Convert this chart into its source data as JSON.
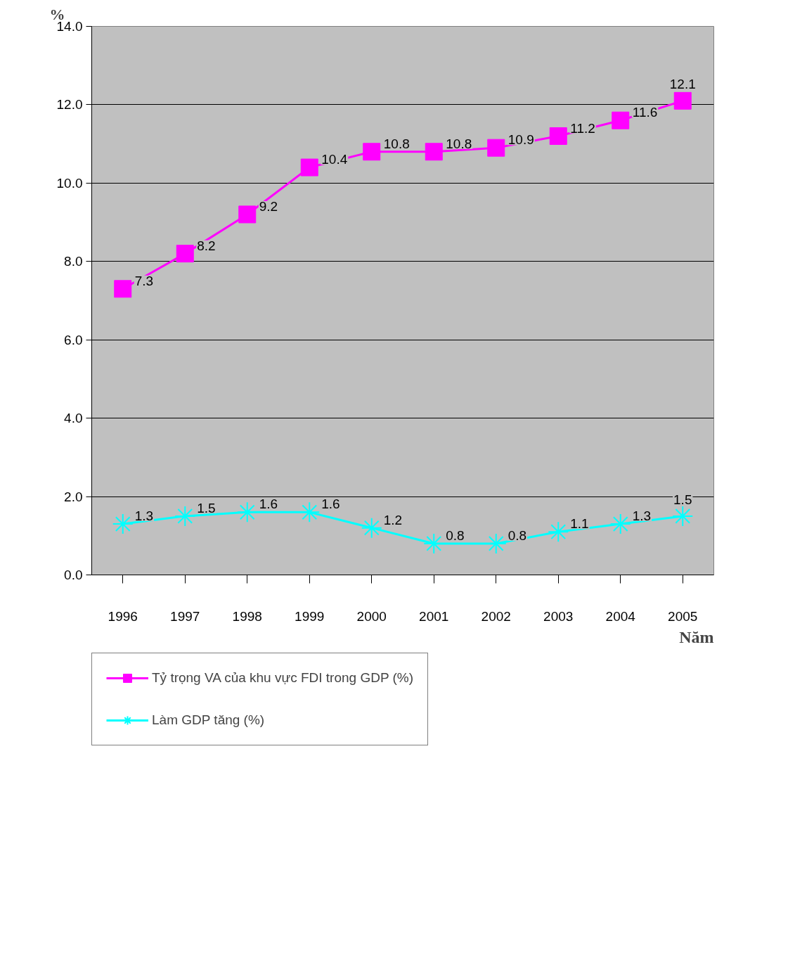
{
  "chart_data": {
    "type": "line",
    "ylabel": "%",
    "xlabel": "Năm",
    "categories": [
      "1996",
      "1997",
      "1998",
      "1999",
      "2000",
      "2001",
      "2002",
      "2003",
      "2004",
      "2005"
    ],
    "series": [
      {
        "name": "Tỷ trọng VA của khu vực FDI trong GDP (%)",
        "color": "#ff00ff",
        "marker": "square",
        "values": [
          7.3,
          8.2,
          9.2,
          10.4,
          10.8,
          10.8,
          10.9,
          11.2,
          11.6,
          12.1
        ]
      },
      {
        "name": "Làm GDP tăng (%)",
        "color": "#00ffff",
        "marker": "cross",
        "values": [
          1.3,
          1.5,
          1.6,
          1.6,
          1.2,
          0.8,
          0.8,
          1.1,
          1.3,
          1.5
        ]
      }
    ],
    "ylim": [
      0,
      14
    ],
    "yticks": [
      {
        "value": 0,
        "label": "0.0"
      },
      {
        "value": 2,
        "label": "2.0"
      },
      {
        "value": 4,
        "label": "4.0"
      },
      {
        "value": 6,
        "label": "6.0"
      },
      {
        "value": 8,
        "label": "8.0"
      },
      {
        "value": 10,
        "label": "10.0"
      },
      {
        "value": 12,
        "label": "12.0"
      },
      {
        "value": 14,
        "label": "14.0"
      }
    ],
    "grid": "y",
    "legend": "bottom",
    "data_labels": true,
    "line_style": "solid"
  }
}
